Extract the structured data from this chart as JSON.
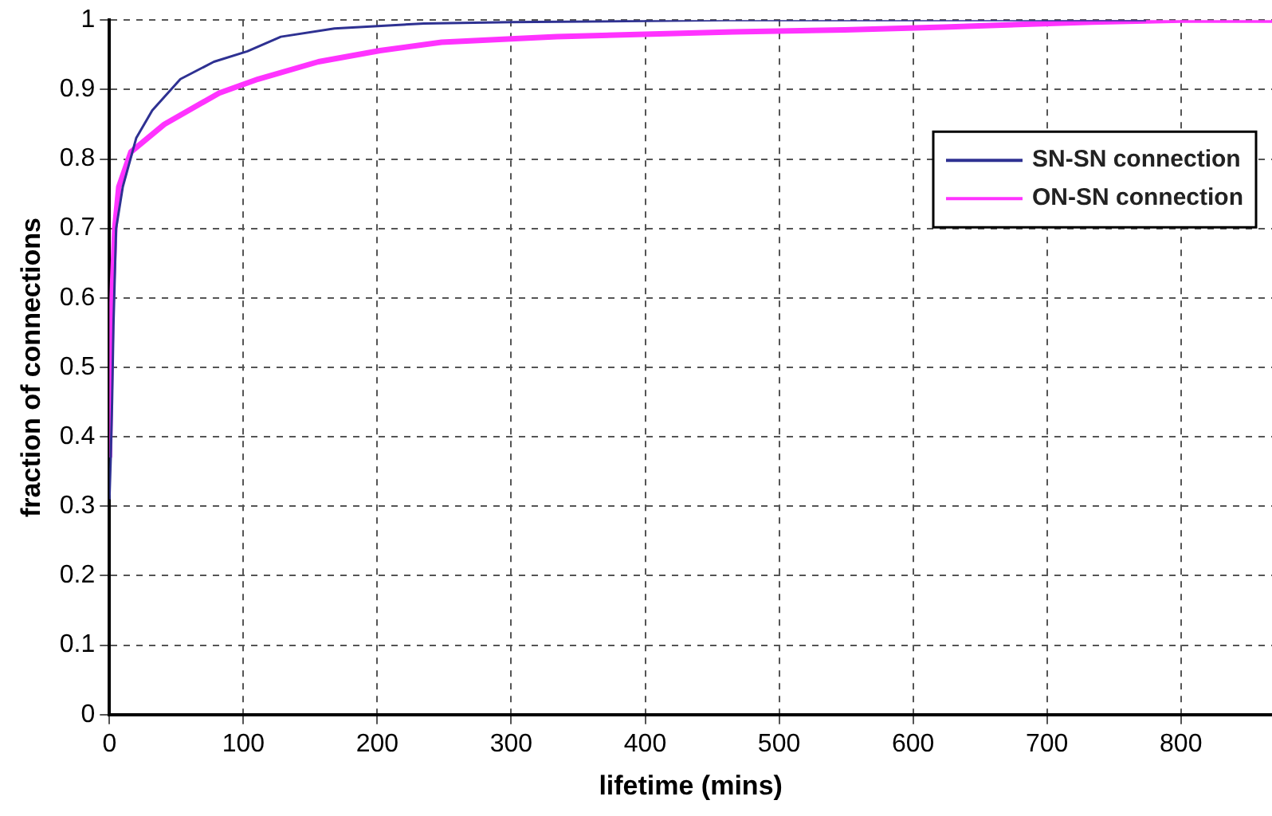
{
  "chart_data": {
    "type": "line",
    "xlabel": "lifetime (mins)",
    "ylabel": "fraction of connections",
    "xlim": [
      0,
      868
    ],
    "ylim": [
      0,
      1
    ],
    "xticks": [
      0,
      100,
      200,
      300,
      400,
      500,
      600,
      700,
      800
    ],
    "yticks": [
      0,
      0.1,
      0.2,
      0.3,
      0.4,
      0.5,
      0.6,
      0.7,
      0.8,
      0.9,
      1
    ],
    "grid": true,
    "legend": "top right",
    "marker": "none",
    "line_style": "solid",
    "series": [
      {
        "name": "SN-SN connection",
        "color": "#2e3192",
        "x": [
          0,
          1,
          2,
          3,
          5,
          10,
          20,
          32,
          53,
          78,
          103,
          128,
          168,
          235,
          300,
          462,
          600,
          774
        ],
        "values": [
          0.31,
          0.37,
          0.45,
          0.56,
          0.7,
          0.76,
          0.83,
          0.87,
          0.915,
          0.94,
          0.955,
          0.976,
          0.988,
          0.995,
          0.997,
          1.0,
          1.0,
          1.0
        ]
      },
      {
        "name": "ON-SN connection",
        "color": "#ff33ff",
        "x": [
          0,
          1,
          2,
          4,
          7,
          16,
          41,
          82,
          111,
          156,
          202,
          248,
          300,
          334,
          466,
          549,
          623,
          734,
          800,
          868
        ],
        "values": [
          0.37,
          0.5,
          0.6,
          0.7,
          0.76,
          0.81,
          0.85,
          0.895,
          0.915,
          0.94,
          0.956,
          0.968,
          0.973,
          0.976,
          0.983,
          0.986,
          0.99,
          0.997,
          1.0,
          1.0
        ]
      }
    ]
  }
}
